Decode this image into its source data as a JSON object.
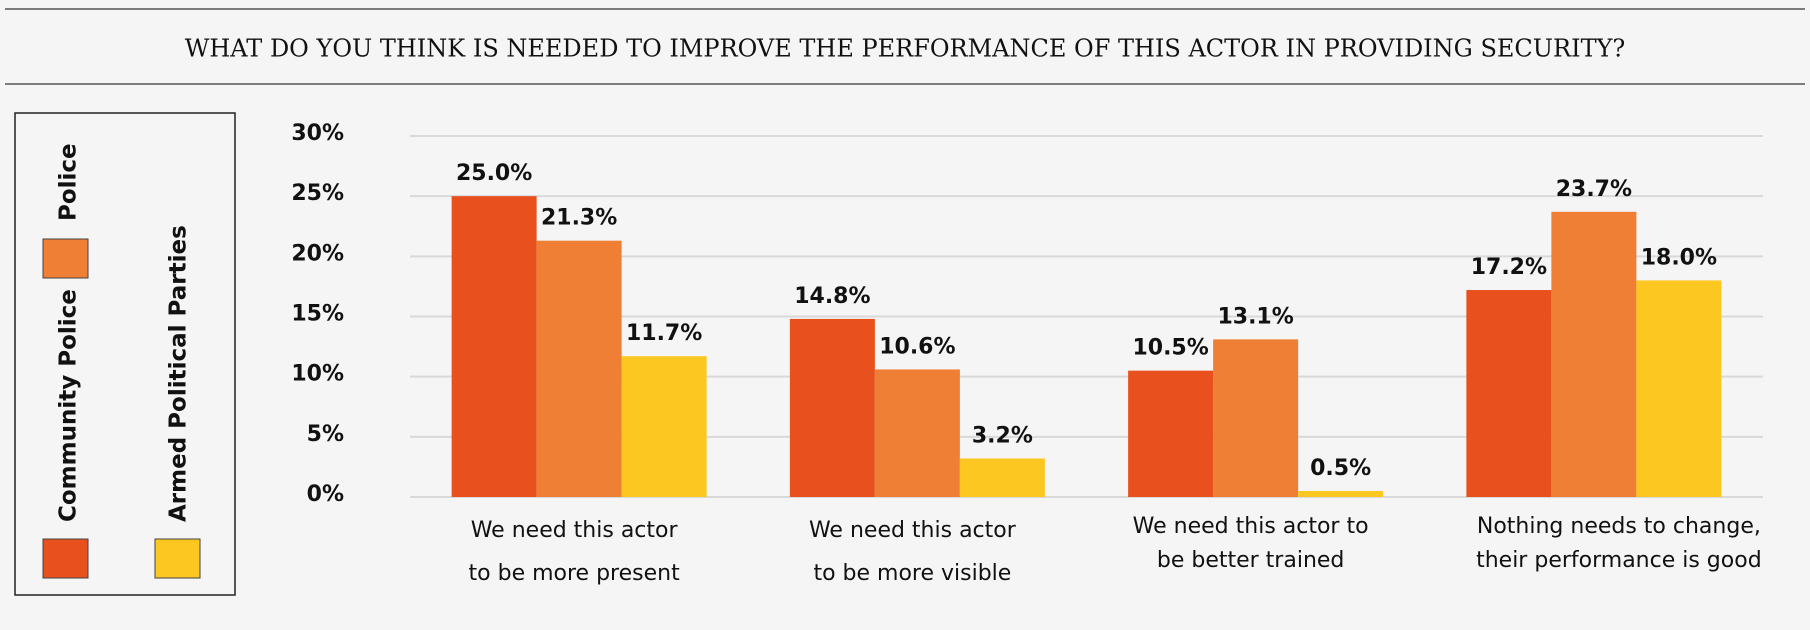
{
  "chart_data": {
    "type": "bar",
    "title": "WHAT DO YOU THINK IS NEEDED TO IMPROVE THE PERFORMANCE OF THIS ACTOR IN PROVIDING SECURITY?",
    "categories": [
      [
        "We need this actor",
        "to be more present"
      ],
      [
        "We need this actor",
        "to be more visible"
      ],
      [
        "We need this actor to",
        "be better trained"
      ],
      [
        "Nothing needs to change,",
        "their performance is good"
      ]
    ],
    "series": [
      {
        "name": "Community Police",
        "color": "#e8501e",
        "values": [
          25.0,
          14.8,
          10.5,
          17.2
        ],
        "value_labels": [
          "25.0%",
          "14.8%",
          "10.5%",
          "17.2%"
        ]
      },
      {
        "name": "Police",
        "color": "#ee7f35",
        "values": [
          21.3,
          10.6,
          13.1,
          23.7
        ],
        "value_labels": [
          "21.3%",
          "10.6%",
          "13.1%",
          "23.7%"
        ]
      },
      {
        "name": "Armed Political Parties",
        "color": "#fdc721",
        "values": [
          11.7,
          3.2,
          0.5,
          18.0
        ],
        "value_labels": [
          "11.7%",
          "3.2%",
          "0.5%",
          "18.0%"
        ]
      }
    ],
    "ylim": [
      0,
      30
    ],
    "yticks": [
      {
        "value": 0,
        "label": "0%"
      },
      {
        "value": 5,
        "label": "5%"
      },
      {
        "value": 10,
        "label": "10%"
      },
      {
        "value": 15,
        "label": "15%"
      },
      {
        "value": 20,
        "label": "20%"
      },
      {
        "value": 25,
        "label": "25%"
      },
      {
        "value": 30,
        "label": "30%"
      }
    ],
    "grid": true
  }
}
